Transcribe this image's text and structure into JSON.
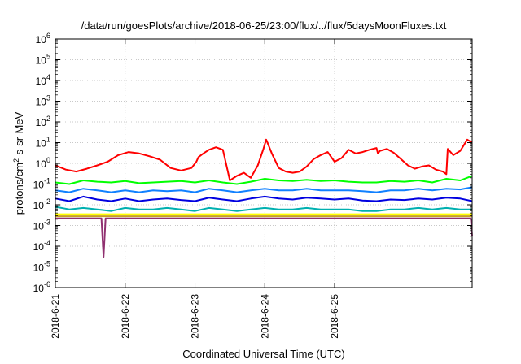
{
  "chart_data": {
    "type": "line",
    "title": "/data/run/goesPlots/archive/2018-06-25/23:00/flux/../flux/5daysMoonFluxes.txt",
    "xlabel": "Coordinated Universal Time (UTC)",
    "ylabel_base": "protons/cm",
    "ylabel_sup": "2",
    "ylabel_rest": "-s-sr-MeV",
    "yscale": "log",
    "ylim_exp": [
      -6,
      6
    ],
    "ytick_exps": [
      -6,
      -5,
      -4,
      -3,
      -2,
      -1,
      0,
      1,
      2,
      3,
      4,
      5,
      6
    ],
    "ytick_base": "10",
    "xlim_days": [
      0,
      5.97
    ],
    "xticks": [
      {
        "label": "2018-6-21",
        "day": 0
      },
      {
        "label": "2018-6-22",
        "day": 1
      },
      {
        "label": "2018-6-23",
        "day": 2
      },
      {
        "label": "2018-6-24",
        "day": 3
      },
      {
        "label": "2018-6-25",
        "day": 4
      }
    ],
    "grid": true,
    "series": [
      {
        "color": "#ff0000",
        "day": [
          0,
          0.15,
          0.3,
          0.45,
          0.6,
          0.75,
          0.9,
          1.05,
          1.2,
          1.35,
          1.5,
          1.65,
          1.8,
          1.95,
          2.02,
          2.05,
          2.12,
          2.2,
          2.3,
          2.4,
          2.5,
          2.6,
          2.7,
          2.8,
          2.9,
          2.98,
          3.02,
          3.1,
          3.2,
          3.3,
          3.4,
          3.5,
          3.6,
          3.7,
          3.8,
          3.9,
          4.0,
          4.1,
          4.2,
          4.3,
          4.4,
          4.5,
          4.6,
          4.62,
          4.65,
          4.75,
          4.85,
          4.95,
          5.05,
          5.15,
          5.25,
          5.35,
          5.45,
          5.55,
          5.6,
          5.62,
          5.7,
          5.8,
          5.9,
          5.97
        ],
        "value": [
          0.8,
          0.5,
          0.4,
          0.55,
          0.8,
          1.2,
          2.5,
          3.5,
          3.0,
          2.2,
          1.5,
          0.6,
          0.45,
          0.6,
          1.2,
          2.0,
          3.0,
          4.5,
          6.0,
          4.5,
          0.15,
          0.25,
          0.35,
          0.2,
          0.8,
          5.0,
          14.0,
          3.0,
          0.6,
          0.4,
          0.35,
          0.4,
          0.7,
          1.6,
          2.5,
          3.5,
          1.2,
          1.8,
          4.5,
          3.0,
          3.5,
          4.5,
          5.5,
          3.0,
          4.0,
          5.0,
          3.2,
          1.6,
          0.8,
          0.55,
          0.7,
          0.8,
          0.5,
          0.4,
          0.3,
          5.0,
          2.5,
          4.0,
          14.0,
          10.0
        ]
      },
      {
        "color": "#00ff00",
        "day": [
          0,
          0.2,
          0.4,
          0.6,
          0.8,
          1.0,
          1.2,
          1.4,
          1.6,
          1.8,
          2.0,
          2.2,
          2.4,
          2.6,
          2.8,
          3.0,
          3.2,
          3.4,
          3.6,
          3.8,
          4.0,
          4.2,
          4.4,
          4.6,
          4.8,
          5.0,
          5.2,
          5.4,
          5.6,
          5.8,
          5.97
        ],
        "value": [
          0.12,
          0.1,
          0.15,
          0.13,
          0.12,
          0.14,
          0.11,
          0.12,
          0.13,
          0.14,
          0.12,
          0.15,
          0.12,
          0.1,
          0.13,
          0.18,
          0.15,
          0.14,
          0.16,
          0.14,
          0.15,
          0.13,
          0.12,
          0.12,
          0.14,
          0.13,
          0.15,
          0.12,
          0.18,
          0.15,
          0.25
        ]
      },
      {
        "color": "#1080ff",
        "day": [
          0,
          0.2,
          0.4,
          0.6,
          0.8,
          1.0,
          1.2,
          1.4,
          1.6,
          1.8,
          2.0,
          2.2,
          2.4,
          2.6,
          2.8,
          3.0,
          3.2,
          3.4,
          3.6,
          3.8,
          4.0,
          4.2,
          4.4,
          4.6,
          4.8,
          5.0,
          5.2,
          5.4,
          5.6,
          5.8,
          5.97
        ],
        "value": [
          0.05,
          0.04,
          0.06,
          0.05,
          0.04,
          0.05,
          0.04,
          0.05,
          0.045,
          0.05,
          0.04,
          0.06,
          0.05,
          0.04,
          0.05,
          0.06,
          0.05,
          0.05,
          0.06,
          0.05,
          0.05,
          0.05,
          0.045,
          0.04,
          0.05,
          0.05,
          0.06,
          0.05,
          0.06,
          0.055,
          0.07
        ]
      },
      {
        "color": "#0000e0",
        "day": [
          0,
          0.2,
          0.4,
          0.6,
          0.8,
          1.0,
          1.2,
          1.4,
          1.6,
          1.8,
          2.0,
          2.2,
          2.4,
          2.6,
          2.8,
          3.0,
          3.2,
          3.4,
          3.6,
          3.8,
          4.0,
          4.2,
          4.4,
          4.6,
          4.8,
          5.0,
          5.2,
          5.4,
          5.6,
          5.8,
          5.97
        ],
        "value": [
          0.02,
          0.015,
          0.025,
          0.018,
          0.015,
          0.02,
          0.015,
          0.018,
          0.02,
          0.017,
          0.015,
          0.022,
          0.018,
          0.015,
          0.02,
          0.025,
          0.02,
          0.018,
          0.022,
          0.02,
          0.018,
          0.02,
          0.016,
          0.015,
          0.018,
          0.017,
          0.02,
          0.018,
          0.022,
          0.02,
          0.015
        ]
      },
      {
        "color": "#00b0b0",
        "day": [
          0,
          0.2,
          0.4,
          0.6,
          0.8,
          1.0,
          1.2,
          1.4,
          1.6,
          1.8,
          2.0,
          2.2,
          2.4,
          2.6,
          2.8,
          3.0,
          3.2,
          3.4,
          3.6,
          3.8,
          4.0,
          4.2,
          4.4,
          4.6,
          4.8,
          5.0,
          5.2,
          5.4,
          5.6,
          5.8,
          5.97
        ],
        "value": [
          0.008,
          0.006,
          0.007,
          0.006,
          0.005,
          0.007,
          0.006,
          0.006,
          0.007,
          0.006,
          0.005,
          0.007,
          0.006,
          0.005,
          0.006,
          0.007,
          0.006,
          0.006,
          0.007,
          0.006,
          0.006,
          0.006,
          0.005,
          0.005,
          0.006,
          0.006,
          0.007,
          0.006,
          0.007,
          0.006,
          0.006
        ]
      },
      {
        "color": "#ffff00",
        "day": [
          0,
          1.0,
          2.0,
          3.0,
          4.0,
          5.0,
          5.97
        ],
        "value": [
          0.0035,
          0.0035,
          0.0035,
          0.0035,
          0.0035,
          0.0035,
          0.0035
        ]
      },
      {
        "color": "#c8a020",
        "day": [
          0,
          1.0,
          2.0,
          3.0,
          4.0,
          5.0,
          5.97
        ],
        "value": [
          0.0028,
          0.0028,
          0.0028,
          0.0028,
          0.0028,
          0.0028,
          0.0028
        ]
      },
      {
        "color": "#903070",
        "day": [
          0,
          0.3,
          0.6,
          0.66,
          0.69,
          0.72,
          0.78,
          1.0,
          1.3,
          1.6,
          2.0,
          2.3,
          2.6,
          3.0,
          3.3,
          3.6,
          4.0,
          4.3,
          4.6,
          5.0,
          5.3,
          5.6,
          5.9,
          5.95,
          5.97
        ],
        "value": [
          0.0022,
          0.0022,
          0.0022,
          0.0022,
          3e-05,
          0.0022,
          0.0022,
          0.0022,
          0.0022,
          0.0022,
          0.0022,
          0.0022,
          0.0022,
          0.0022,
          0.0022,
          0.0022,
          0.0022,
          0.0022,
          0.0022,
          0.0022,
          0.0022,
          0.0022,
          0.0022,
          0.0022,
          0.0003
        ]
      }
    ]
  }
}
